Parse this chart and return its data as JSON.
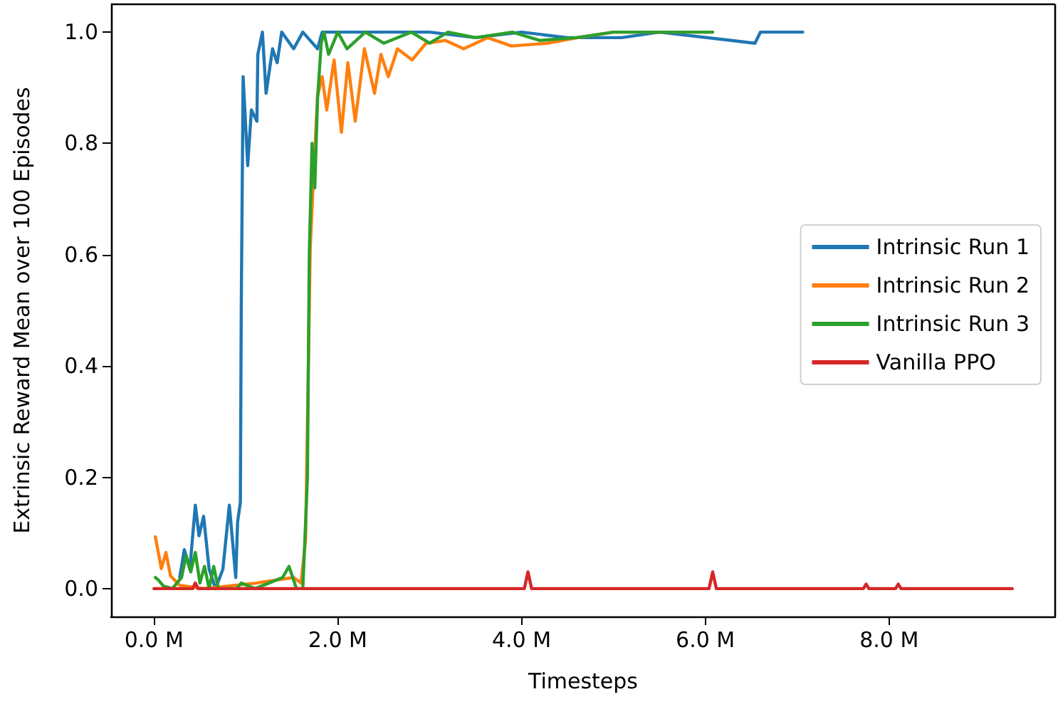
{
  "chart_data": {
    "type": "line",
    "xlabel": "Timesteps",
    "ylabel": "Extrinsic Reward Mean over 100 Episodes",
    "xlim": [
      -0.467,
      9.807
    ],
    "ylim": [
      -0.05,
      1.05
    ],
    "xticks": [
      {
        "value": 0,
        "label": "0.0 M"
      },
      {
        "value": 2,
        "label": "2.0 M"
      },
      {
        "value": 4,
        "label": "4.0 M"
      },
      {
        "value": 6,
        "label": "6.0 M"
      },
      {
        "value": 8,
        "label": "8.0 M"
      }
    ],
    "yticks": [
      {
        "value": 0,
        "label": "0.0"
      },
      {
        "value": 0.2,
        "label": "0.2"
      },
      {
        "value": 0.4,
        "label": "0.4"
      },
      {
        "value": 0.6,
        "label": "0.6"
      },
      {
        "value": 0.8,
        "label": "0.8"
      },
      {
        "value": 1,
        "label": "1.0"
      }
    ],
    "grid": false,
    "legend": "right",
    "marker": "none",
    "line_style": "solid",
    "series": [
      {
        "name": "Intrinsic Run 1",
        "color": "#1f77b4",
        "x": [
          0.28,
          0.33,
          0.39,
          0.45,
          0.49,
          0.54,
          0.6,
          0.67,
          0.75,
          0.82,
          0.89,
          0.91,
          0.94,
          0.95,
          0.97,
          1.02,
          1.06,
          1.12,
          1.13,
          1.18,
          1.22,
          1.29,
          1.34,
          1.39,
          1.52,
          1.62,
          1.78,
          1.83,
          3.0,
          3.5,
          4.0,
          4.5,
          5.09,
          5.5,
          6.54,
          6.6,
          7.06
        ],
        "values": [
          0.02,
          0.07,
          0.035,
          0.15,
          0.095,
          0.13,
          0.035,
          0.0,
          0.035,
          0.15,
          0.02,
          0.12,
          0.155,
          0.51,
          0.92,
          0.76,
          0.86,
          0.84,
          0.96,
          1.0,
          0.89,
          0.97,
          0.945,
          1.0,
          0.97,
          1.0,
          0.97,
          1.0,
          1.0,
          0.99,
          1.0,
          0.99,
          0.99,
          1.0,
          0.98,
          1.0,
          1.0
        ]
      },
      {
        "name": "Intrinsic Run 2",
        "color": "#ff7f0e",
        "x": [
          0.015,
          0.08,
          0.13,
          0.18,
          0.28,
          0.54,
          1.11,
          1.52,
          1.6,
          1.65,
          1.7,
          1.73,
          1.78,
          1.83,
          1.88,
          1.96,
          2.04,
          2.11,
          2.19,
          2.29,
          2.4,
          2.47,
          2.55,
          2.65,
          2.81,
          2.96,
          3.17,
          3.37,
          3.63,
          3.89,
          4.28,
          4.61,
          5.0,
          6.08
        ],
        "values": [
          0.093,
          0.036,
          0.065,
          0.023,
          0.006,
          0.0,
          0.01,
          0.02,
          0.01,
          0.087,
          0.61,
          0.72,
          0.885,
          0.92,
          0.86,
          0.95,
          0.82,
          0.945,
          0.84,
          0.97,
          0.89,
          0.96,
          0.92,
          0.97,
          0.95,
          0.98,
          0.985,
          0.97,
          0.99,
          0.975,
          0.98,
          0.99,
          1.0,
          1.0
        ]
      },
      {
        "name": "Intrinsic Run 3",
        "color": "#2ca02c",
        "x": [
          0.015,
          0.05,
          0.1,
          0.2,
          0.3,
          0.35,
          0.4,
          0.45,
          0.5,
          0.55,
          0.6,
          0.65,
          0.7,
          0.9,
          0.95,
          1.1,
          1.25,
          1.4,
          1.47,
          1.55,
          1.62,
          1.67,
          1.69,
          1.72,
          1.75,
          1.78,
          1.82,
          1.85,
          1.9,
          2.0,
          2.1,
          2.3,
          2.5,
          2.8,
          3.0,
          3.2,
          3.5,
          3.9,
          4.2,
          4.6,
          5.0,
          6.08
        ],
        "values": [
          0.02,
          0.015,
          0.005,
          0.0,
          0.02,
          0.06,
          0.03,
          0.065,
          0.01,
          0.04,
          0.0,
          0.04,
          0.0,
          0.0,
          0.01,
          0.0,
          0.01,
          0.02,
          0.04,
          0.0,
          0.0,
          0.2,
          0.6,
          0.8,
          0.72,
          0.88,
          0.98,
          1.0,
          0.96,
          1.0,
          0.97,
          1.0,
          0.98,
          1.0,
          0.98,
          1.0,
          0.99,
          1.0,
          0.985,
          0.99,
          1.0,
          1.0
        ]
      },
      {
        "name": "Vanilla PPO",
        "color": "#d62728",
        "x": [
          0,
          0.42,
          0.45,
          0.48,
          4.03,
          4.07,
          4.11,
          6.04,
          6.08,
          6.12,
          7.72,
          7.75,
          7.78,
          8.07,
          8.1,
          8.13,
          9.34
        ],
        "values": [
          0,
          0,
          0.01,
          0,
          0,
          0.03,
          0,
          0,
          0.03,
          0,
          0,
          0.008,
          0,
          0,
          0.008,
          0,
          0
        ]
      }
    ]
  }
}
